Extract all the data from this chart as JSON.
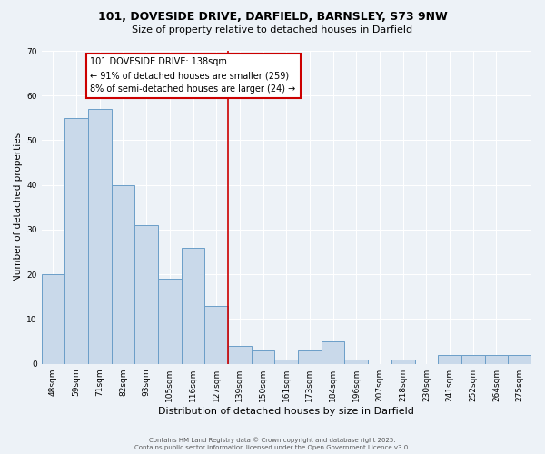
{
  "title_line1": "101, DOVESIDE DRIVE, DARFIELD, BARNSLEY, S73 9NW",
  "title_line2": "Size of property relative to detached houses in Darfield",
  "xlabel": "Distribution of detached houses by size in Darfield",
  "ylabel": "Number of detached properties",
  "bar_labels": [
    "48sqm",
    "59sqm",
    "71sqm",
    "82sqm",
    "93sqm",
    "105sqm",
    "116sqm",
    "127sqm",
    "139sqm",
    "150sqm",
    "161sqm",
    "173sqm",
    "184sqm",
    "196sqm",
    "207sqm",
    "218sqm",
    "230sqm",
    "241sqm",
    "252sqm",
    "264sqm",
    "275sqm"
  ],
  "bar_values": [
    20,
    55,
    57,
    40,
    31,
    19,
    26,
    13,
    4,
    3,
    1,
    3,
    5,
    1,
    0,
    1,
    0,
    2,
    2,
    2,
    2
  ],
  "bar_color": "#c9d9ea",
  "bar_edge_color": "#6b9ec8",
  "vline_color": "#cc0000",
  "annotation_title": "101 DOVESIDE DRIVE: 138sqm",
  "annotation_line2": "← 91% of detached houses are smaller (259)",
  "annotation_line3": "8% of semi-detached houses are larger (24) →",
  "annotation_box_edge_color": "#cc0000",
  "ylim": [
    0,
    70
  ],
  "yticks": [
    0,
    10,
    20,
    30,
    40,
    50,
    60,
    70
  ],
  "footer_line1": "Contains HM Land Registry data © Crown copyright and database right 2025.",
  "footer_line2": "Contains public sector information licensed under the Open Government Licence v3.0.",
  "background_color": "#edf2f7",
  "grid_color": "#ffffff",
  "title_fontsize": 9,
  "subtitle_fontsize": 8,
  "ylabel_fontsize": 7.5,
  "xlabel_fontsize": 8,
  "tick_fontsize": 6.5,
  "annot_fontsize": 7,
  "footer_fontsize": 5
}
